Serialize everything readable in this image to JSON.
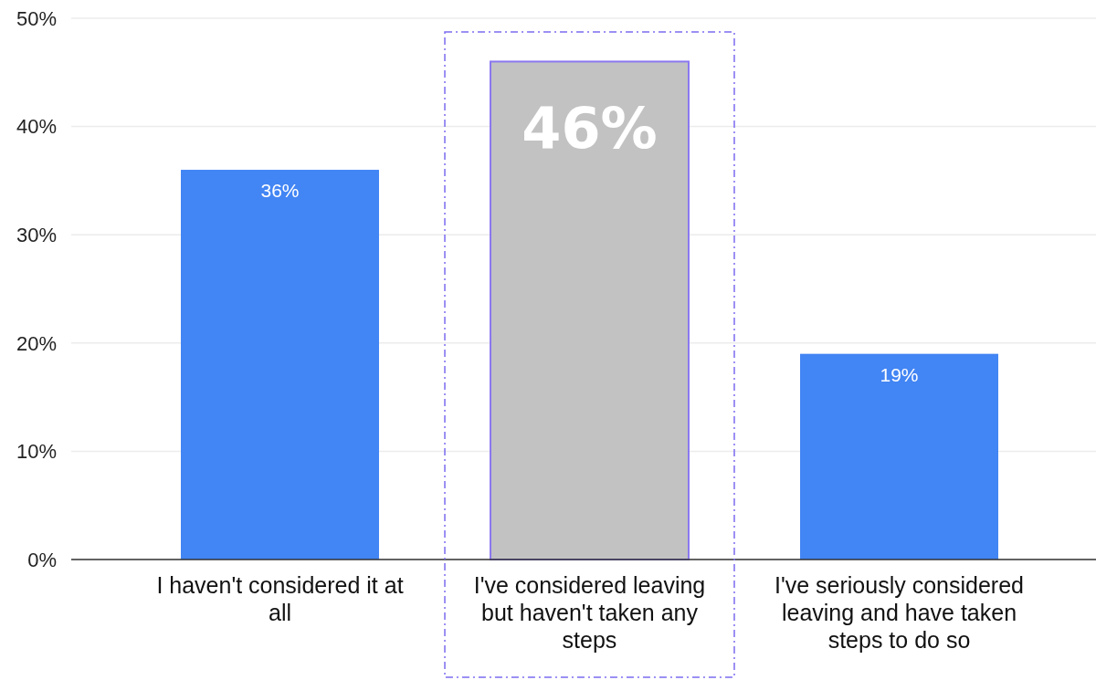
{
  "chart_data": {
    "type": "bar",
    "categories": [
      "I haven't considered it at all",
      "I've considered leaving but haven't taken any steps",
      "I've seriously considered leaving and have taken steps to do so"
    ],
    "values": [
      36,
      46,
      19
    ],
    "colors": [
      "#4285f4",
      "#c2c2c2",
      "#4285f4"
    ],
    "value_labels": [
      "36%",
      "46%",
      "19%"
    ],
    "ylim": [
      0,
      50
    ],
    "yticks": [
      {
        "value": 0,
        "label": "0%"
      },
      {
        "value": 10,
        "label": "10%"
      },
      {
        "value": 20,
        "label": "20%"
      },
      {
        "value": 30,
        "label": "30%"
      },
      {
        "value": 40,
        "label": "40%"
      },
      {
        "value": 50,
        "label": "50%"
      }
    ],
    "grid": "y"
  }
}
